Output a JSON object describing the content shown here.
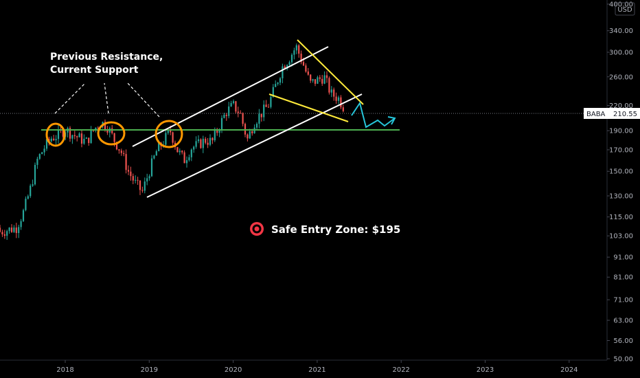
{
  "chart_data": {
    "type": "candlestick",
    "symbol": "BABA",
    "last_price": "210.55",
    "currency": "USD",
    "scale": "log",
    "y_ticks": [
      "400.00",
      "340.00",
      "300.00",
      "260.00",
      "220.00",
      "190.00",
      "170.00",
      "150.00",
      "130.00",
      "115.00",
      "103.00",
      "91.00",
      "81.00",
      "71.00",
      "63.00",
      "56.00",
      "50.00"
    ],
    "x_ticks": [
      "2018",
      "2019",
      "2020",
      "2021",
      "2022",
      "2023",
      "2024"
    ],
    "annotations": {
      "resistance_line1": "Previous Resistance,",
      "resistance_line2": "Current Support",
      "entry_label": "Safe Entry Zone: $195",
      "support_level": 190
    },
    "colors": {
      "up": "#26a69a",
      "down": "#ef5350",
      "channel": "#ffffff",
      "wedge": "#ffeb3b",
      "support": "#4caf50",
      "circle": "#ff9800",
      "projection": "#26c6da",
      "target": "#f23645"
    },
    "series": [
      {
        "date": "2017-06",
        "price": 108
      },
      {
        "date": "2017-07",
        "price": 118
      },
      {
        "date": "2017-08",
        "price": 135
      },
      {
        "date": "2017-09",
        "price": 160
      },
      {
        "date": "2017-10",
        "price": 172
      },
      {
        "date": "2017-11",
        "price": 182
      },
      {
        "date": "2017-12",
        "price": 185
      },
      {
        "date": "2018-01",
        "price": 192
      },
      {
        "date": "2018-02",
        "price": 186
      },
      {
        "date": "2018-03",
        "price": 182
      },
      {
        "date": "2018-04",
        "price": 178
      },
      {
        "date": "2018-05",
        "price": 190
      },
      {
        "date": "2018-06",
        "price": 200
      },
      {
        "date": "2018-07",
        "price": 195
      },
      {
        "date": "2018-08",
        "price": 180
      },
      {
        "date": "2018-09",
        "price": 168
      },
      {
        "date": "2018-10",
        "price": 150
      },
      {
        "date": "2018-11",
        "price": 140
      },
      {
        "date": "2018-12",
        "price": 133
      },
      {
        "date": "2019-01",
        "price": 150
      },
      {
        "date": "2019-02",
        "price": 168
      },
      {
        "date": "2019-03",
        "price": 178
      },
      {
        "date": "2019-04",
        "price": 190
      },
      {
        "date": "2019-05",
        "price": 170
      },
      {
        "date": "2019-06",
        "price": 160
      },
      {
        "date": "2019-07",
        "price": 172
      },
      {
        "date": "2019-08",
        "price": 175
      },
      {
        "date": "2019-09",
        "price": 180
      },
      {
        "date": "2019-10",
        "price": 178
      },
      {
        "date": "2019-11",
        "price": 195
      },
      {
        "date": "2019-12",
        "price": 212
      },
      {
        "date": "2020-01",
        "price": 220
      },
      {
        "date": "2020-02",
        "price": 210
      },
      {
        "date": "2020-03",
        "price": 180
      },
      {
        "date": "2020-04",
        "price": 200
      },
      {
        "date": "2020-05",
        "price": 210
      },
      {
        "date": "2020-06",
        "price": 220
      },
      {
        "date": "2020-07",
        "price": 245
      },
      {
        "date": "2020-08",
        "price": 275
      },
      {
        "date": "2020-09",
        "price": 290
      },
      {
        "date": "2020-10",
        "price": 310
      },
      {
        "date": "2020-11",
        "price": 280
      },
      {
        "date": "2020-12",
        "price": 250
      },
      {
        "date": "2021-01",
        "price": 255
      },
      {
        "date": "2021-02",
        "price": 260
      },
      {
        "date": "2021-03",
        "price": 235
      },
      {
        "date": "2021-04",
        "price": 230
      },
      {
        "date": "2021-05",
        "price": 215
      }
    ]
  }
}
